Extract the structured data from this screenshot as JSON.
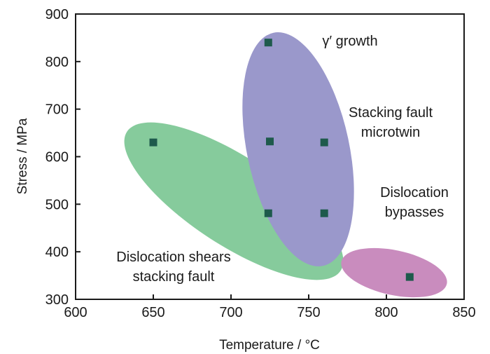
{
  "chart_data": {
    "type": "scatter",
    "xlabel": "Temperature / °C",
    "ylabel": "Stress / MPa",
    "xlim": [
      600,
      850
    ],
    "ylim": [
      300,
      900
    ],
    "xticks": [
      "600",
      "650",
      "700",
      "750",
      "800",
      "850"
    ],
    "yticks": [
      "300",
      "400",
      "500",
      "600",
      "700",
      "800",
      "900"
    ],
    "grid": false,
    "points": [
      {
        "x": 650,
        "y": 630
      },
      {
        "x": 724,
        "y": 840
      },
      {
        "x": 725,
        "y": 632
      },
      {
        "x": 760,
        "y": 630
      },
      {
        "x": 724,
        "y": 481
      },
      {
        "x": 760,
        "y": 481
      },
      {
        "x": 815,
        "y": 347
      }
    ],
    "marker_color": "#1e5a4c",
    "regions": [
      {
        "label": "Dislocation shears stacking fault",
        "label_lines": [
          "Dislocation shears",
          "stacking fault"
        ],
        "color": "#86cb9c"
      },
      {
        "label": "γ' growth Stacking fault microtwin",
        "label_lines": [
          "γ′ growth"
        ],
        "label_lines_2": [
          "Stacking fault",
          "microtwin"
        ],
        "color": "#9a98cb"
      },
      {
        "label": "Dislocation bypasses",
        "label_lines": [
          "Dislocation",
          "bypasses"
        ],
        "color": "#c98cbe"
      }
    ]
  }
}
